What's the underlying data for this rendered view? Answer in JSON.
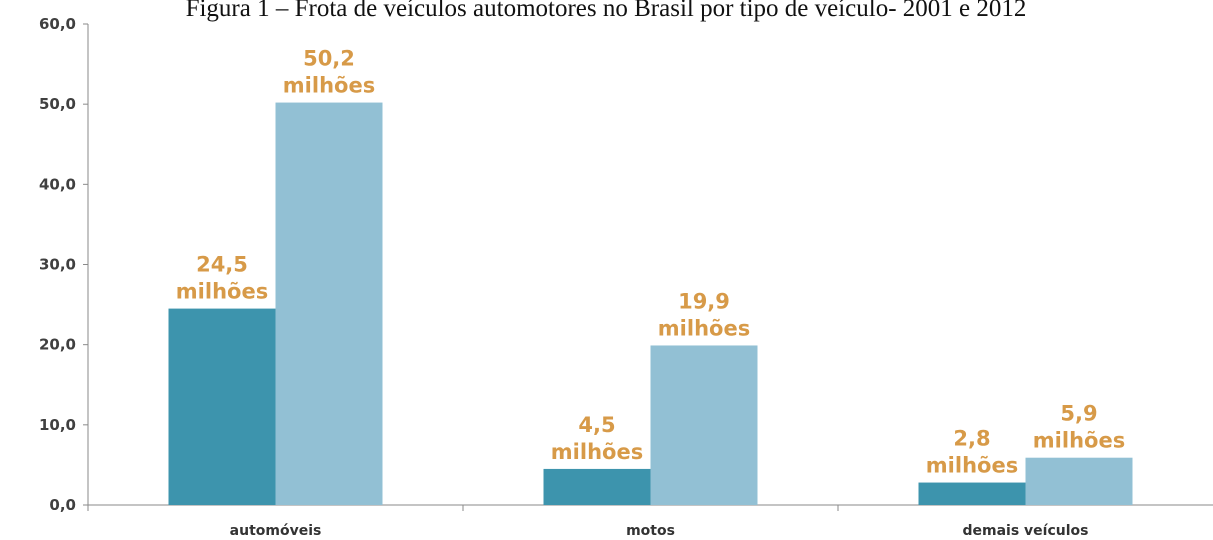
{
  "colors": {
    "series_dark": "#3d94ad",
    "series_light": "#92c0d4",
    "label": "#d79a48",
    "axis": "#8a8a8a"
  },
  "chart_data": {
    "type": "bar",
    "title": "Figura 1 – Frota de veículos automotores no Brasil por tipo de veículo- 2001 e 2012",
    "categories": [
      "automóveis",
      "motos",
      "demais veículos"
    ],
    "series": [
      {
        "values": [
          24.5,
          4.5,
          2.8
        ],
        "labels": [
          [
            "24,5",
            "milhões"
          ],
          [
            "4,5",
            "milhões"
          ],
          [
            "2,8",
            "milhões"
          ]
        ]
      },
      {
        "values": [
          50.2,
          19.9,
          5.9
        ],
        "labels": [
          [
            "50,2",
            "milhões"
          ],
          [
            "19,9",
            "milhões"
          ],
          [
            "5,9",
            "milhões"
          ]
        ]
      }
    ],
    "yticks": [
      "0,0",
      "10,0",
      "20,0",
      "30,0",
      "40,0",
      "50,0",
      "60,0"
    ],
    "ylim": [
      0,
      60
    ],
    "xlabel": "",
    "ylabel": "",
    "grid": false,
    "legend": "none"
  }
}
